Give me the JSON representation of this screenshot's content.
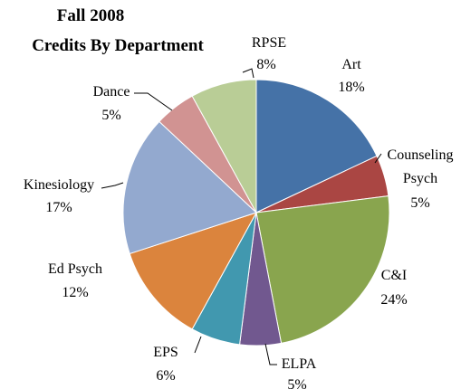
{
  "chart_data": {
    "type": "pie",
    "title": "Fall 2008",
    "subtitle": "Credits By Department",
    "categories": [
      "Art",
      "Counseling Psych",
      "C&I",
      "ELPA",
      "EPS",
      "Ed Psych",
      "Kinesiology",
      "Dance",
      "RPSE"
    ],
    "values": [
      18,
      5,
      24,
      5,
      6,
      12,
      17,
      5,
      8
    ],
    "value_labels": [
      "18%",
      "5%",
      "24%",
      "5%",
      "6%",
      "12%",
      "17%",
      "5%",
      "8%"
    ],
    "colors": [
      "#4572a7",
      "#aa4643",
      "#89a54e",
      "#71588f",
      "#4198af",
      "#db843d",
      "#93a9cf",
      "#d19392",
      "#b9cd96"
    ]
  }
}
